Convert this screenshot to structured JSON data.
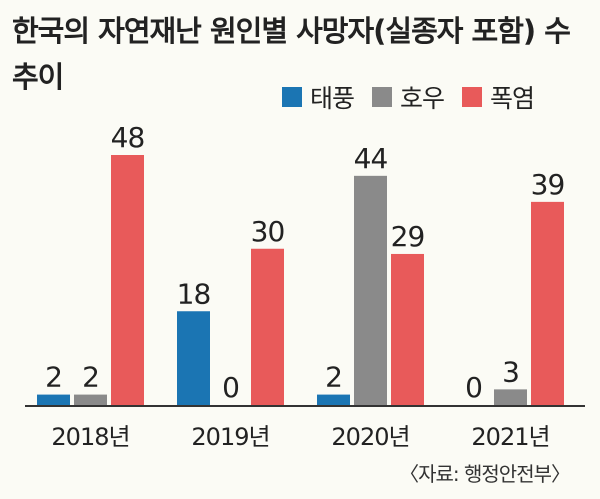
{
  "title": "한국의 자연재난 원인별 사망자(실종자 포함) 수 추이",
  "source": "〈자료: 행정안전부〉",
  "chart_data": {
    "type": "bar",
    "title": "한국의 자연재난 원인별 사망자(실종자 포함) 수 추이",
    "categories": [
      "2018년",
      "2019년",
      "2020년",
      "2021년"
    ],
    "series": [
      {
        "name": "태풍",
        "color": "#1b75b3",
        "values": [
          2,
          18,
          2,
          0
        ]
      },
      {
        "name": "호우",
        "color": "#8a8a8a",
        "values": [
          2,
          0,
          44,
          3
        ]
      },
      {
        "name": "폭염",
        "color": "#e85a5a",
        "values": [
          48,
          30,
          29,
          39
        ]
      }
    ],
    "ylim": [
      0,
      50
    ],
    "grid": false,
    "legend_position": "top-right"
  }
}
